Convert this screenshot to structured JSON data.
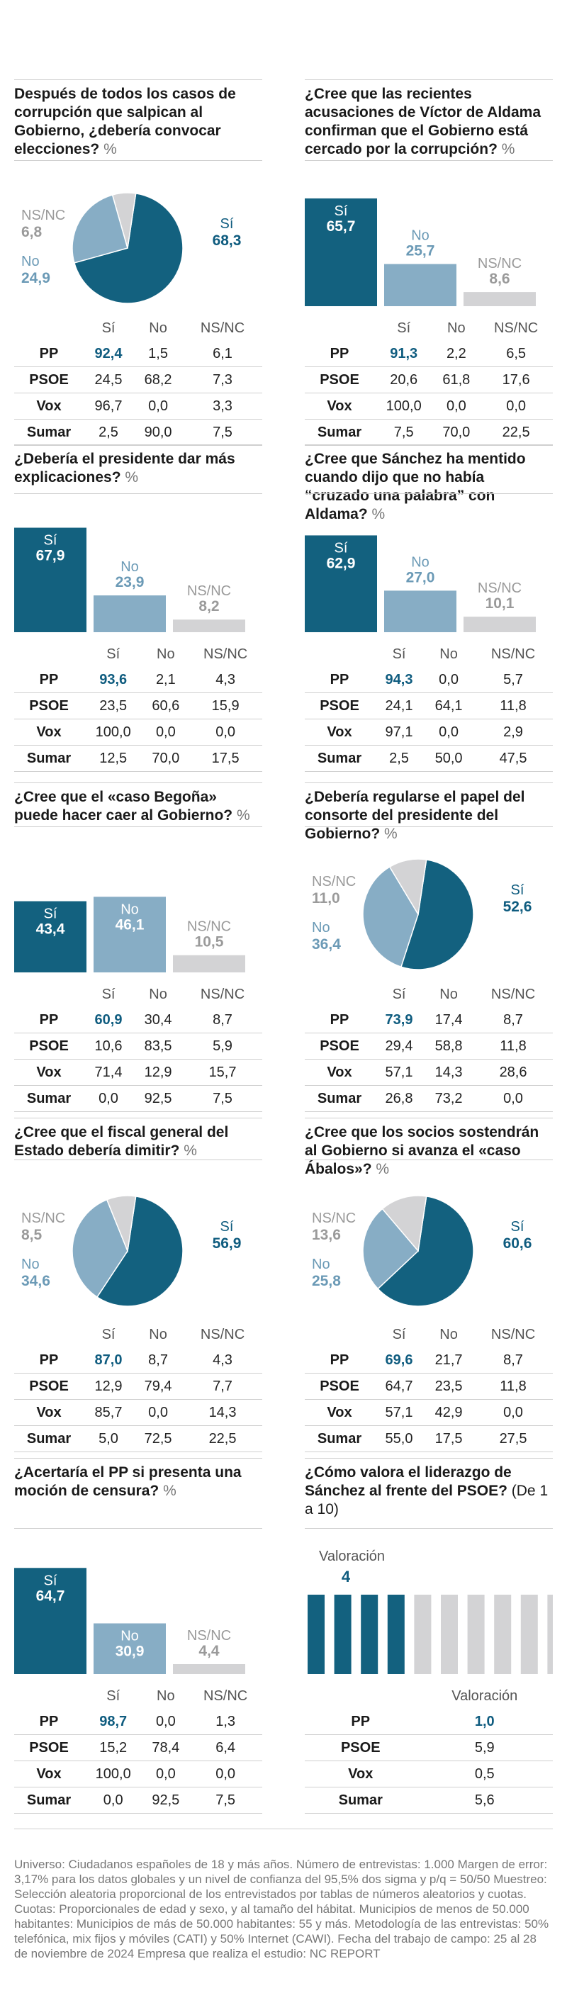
{
  "colors": {
    "si": "#13617f",
    "no": "#87adc5",
    "ns": "#d3d3d5",
    "si_text": "#0f5c7f",
    "no_text": "#6b9ab6",
    "ns_text": "#9a9a9a",
    "inactive": "#d3d3d5"
  },
  "labels": {
    "si": "Sí",
    "no": "No",
    "ns": "NS/NC",
    "pct": "%",
    "valoracion": "Valoración"
  },
  "chart_data": [
    {
      "id": "q1",
      "type": "pie",
      "title": "Después de todos los casos de corrupción que salpican al Gobierno, ¿debería convocar elecciones?",
      "values": {
        "si": "68,3",
        "no": "24,9",
        "ns": "6,8"
      },
      "table": {
        "columns": [
          "Sí",
          "No",
          "NS/NC"
        ],
        "rows": [
          {
            "label": "PP",
            "values": [
              "92,4",
              "1,5",
              "6,1"
            ]
          },
          {
            "label": "PSOE",
            "values": [
              "24,5",
              "68,2",
              "7,3"
            ]
          },
          {
            "label": "Vox",
            "values": [
              "96,7",
              "0,0",
              "3,3"
            ]
          },
          {
            "label": "Sumar",
            "values": [
              "2,5",
              "90,0",
              "7,5"
            ]
          }
        ]
      }
    },
    {
      "id": "q2",
      "type": "bar",
      "title": "¿Cree que las recientes acusaciones de Víctor de Aldama confirman que el Gobierno está cercado por la corrupción?",
      "values": {
        "si": "65,7",
        "no": "25,7",
        "ns": "8,6"
      },
      "table": {
        "columns": [
          "Sí",
          "No",
          "NS/NC"
        ],
        "rows": [
          {
            "label": "PP",
            "values": [
              "91,3",
              "2,2",
              "6,5"
            ]
          },
          {
            "label": "PSOE",
            "values": [
              "20,6",
              "61,8",
              "17,6"
            ]
          },
          {
            "label": "Vox",
            "values": [
              "100,0",
              "0,0",
              "0,0"
            ]
          },
          {
            "label": "Sumar",
            "values": [
              "7,5",
              "70,0",
              "22,5"
            ]
          }
        ]
      }
    },
    {
      "id": "q3",
      "type": "bar",
      "title": "¿Debería el presidente dar más explicaciones?",
      "values": {
        "si": "67,9",
        "no": "23,9",
        "ns": "8,2"
      },
      "table": {
        "columns": [
          "Sí",
          "No",
          "NS/NC"
        ],
        "rows": [
          {
            "label": "PP",
            "values": [
              "93,6",
              "2,1",
              "4,3"
            ]
          },
          {
            "label": "PSOE",
            "values": [
              "23,5",
              "60,6",
              "15,9"
            ]
          },
          {
            "label": "Vox",
            "values": [
              "100,0",
              "0,0",
              "0,0"
            ]
          },
          {
            "label": "Sumar",
            "values": [
              "12,5",
              "70,0",
              "17,5"
            ]
          }
        ]
      }
    },
    {
      "id": "q4",
      "type": "bar",
      "title": "¿Cree que Sánchez ha mentido cuando dijo que no había “cruzado una palabra” con Aldama?",
      "values": {
        "si": "62,9",
        "no": "27,0",
        "ns": "10,1"
      },
      "table": {
        "columns": [
          "Sí",
          "No",
          "NS/NC"
        ],
        "rows": [
          {
            "label": "PP",
            "values": [
              "94,3",
              "0,0",
              "5,7"
            ]
          },
          {
            "label": "PSOE",
            "values": [
              "24,1",
              "64,1",
              "11,8"
            ]
          },
          {
            "label": "Vox",
            "values": [
              "97,1",
              "0,0",
              "2,9"
            ]
          },
          {
            "label": "Sumar",
            "values": [
              "2,5",
              "50,0",
              "47,5"
            ]
          }
        ]
      }
    },
    {
      "id": "q5",
      "type": "bar",
      "title": "¿Cree que el «caso Begoña» puede hacer caer al Gobierno?",
      "values": {
        "si": "43,4",
        "no": "46,1",
        "ns": "10,5"
      },
      "table": {
        "columns": [
          "Sí",
          "No",
          "NS/NC"
        ],
        "rows": [
          {
            "label": "PP",
            "values": [
              "60,9",
              "30,4",
              "8,7"
            ]
          },
          {
            "label": "PSOE",
            "values": [
              "10,6",
              "83,5",
              "5,9"
            ]
          },
          {
            "label": "Vox",
            "values": [
              "71,4",
              "12,9",
              "15,7"
            ]
          },
          {
            "label": "Sumar",
            "values": [
              "0,0",
              "92,5",
              "7,5"
            ]
          }
        ]
      }
    },
    {
      "id": "q6",
      "type": "pie",
      "title": "¿Debería regularse el papel del consorte del presidente del Gobierno?",
      "values": {
        "si": "52,6",
        "no": "36,4",
        "ns": "11,0"
      },
      "table": {
        "columns": [
          "Sí",
          "No",
          "NS/NC"
        ],
        "rows": [
          {
            "label": "PP",
            "values": [
              "73,9",
              "17,4",
              "8,7"
            ]
          },
          {
            "label": "PSOE",
            "values": [
              "29,4",
              "58,8",
              "11,8"
            ]
          },
          {
            "label": "Vox",
            "values": [
              "57,1",
              "14,3",
              "28,6"
            ]
          },
          {
            "label": "Sumar",
            "values": [
              "26,8",
              "73,2",
              "0,0"
            ]
          }
        ]
      }
    },
    {
      "id": "q7",
      "type": "pie",
      "title": "¿Cree que el fiscal general del Estado debería dimitir?",
      "values": {
        "si": "56,9",
        "no": "34,6",
        "ns": "8,5"
      },
      "table": {
        "columns": [
          "Sí",
          "No",
          "NS/NC"
        ],
        "rows": [
          {
            "label": "PP",
            "values": [
              "87,0",
              "8,7",
              "4,3"
            ]
          },
          {
            "label": "PSOE",
            "values": [
              "12,9",
              "79,4",
              "7,7"
            ]
          },
          {
            "label": "Vox",
            "values": [
              "85,7",
              "0,0",
              "14,3"
            ]
          },
          {
            "label": "Sumar",
            "values": [
              "5,0",
              "72,5",
              "22,5"
            ]
          }
        ]
      }
    },
    {
      "id": "q8",
      "type": "pie",
      "title": "¿Cree que los socios sostendrán al Gobierno si avanza el «caso Ábalos»?",
      "values": {
        "si": "60,6",
        "no": "25,8",
        "ns": "13,6"
      },
      "table": {
        "columns": [
          "Sí",
          "No",
          "NS/NC"
        ],
        "rows": [
          {
            "label": "PP",
            "values": [
              "69,6",
              "21,7",
              "8,7"
            ]
          },
          {
            "label": "PSOE",
            "values": [
              "64,7",
              "23,5",
              "11,8"
            ]
          },
          {
            "label": "Vox",
            "values": [
              "57,1",
              "42,9",
              "0,0"
            ]
          },
          {
            "label": "Sumar",
            "values": [
              "55,0",
              "17,5",
              "27,5"
            ]
          }
        ]
      }
    },
    {
      "id": "q9",
      "type": "bar",
      "title": "¿Acertaría el PP si presenta una moción de censura?",
      "values": {
        "si": "64,7",
        "no": "30,9",
        "ns": "4,4"
      },
      "table": {
        "columns": [
          "Sí",
          "No",
          "NS/NC"
        ],
        "rows": [
          {
            "label": "PP",
            "values": [
              "98,7",
              "0,0",
              "1,3"
            ]
          },
          {
            "label": "PSOE",
            "values": [
              "15,2",
              "78,4",
              "6,4"
            ]
          },
          {
            "label": "Vox",
            "values": [
              "100,0",
              "0,0",
              "0,0"
            ]
          },
          {
            "label": "Sumar",
            "values": [
              "0,0",
              "92,5",
              "7,5"
            ]
          }
        ]
      }
    },
    {
      "id": "q10",
      "type": "rating",
      "title": "¿Cómo valora el liderazgo de Sánchez al frente del PSOE?",
      "title_suffix": "(De 1 a 10)",
      "value": 4,
      "max": 10,
      "table": {
        "columns": [
          "Valoración"
        ],
        "rows": [
          {
            "label": "PP",
            "values": [
              "1,0"
            ]
          },
          {
            "label": "PSOE",
            "values": [
              "5,9"
            ]
          },
          {
            "label": "Vox",
            "values": [
              "0,5"
            ]
          },
          {
            "label": "Sumar",
            "values": [
              "5,6"
            ]
          }
        ]
      }
    }
  ],
  "footnote": "Universo: Ciudadanos españoles de 18 y más años. Número de entrevistas: 1.000 Margen de error: 3,17% para los datos globales y un nivel de confianza del 95,5% dos sigma y p/q = 50/50 Muestreo: Selección aleatoria proporcional de los entrevistados por tablas de números aleatorios y cuotas. Cuotas: Proporcionales de edad y sexo, y al tamaño del hábitat.  Municipios de menos de 50.000 habitantes: Municipios de más de 50.000 habitantes: 55 y más. Metodología de las entrevistas: 50% telefónica, mix fijos y móviles (CATI) y 50% Internet (CAWI). Fecha del trabajo de campo: 25 al 28 de noviembre de 2024 Empresa que realiza el estudio: NC REPORT"
}
